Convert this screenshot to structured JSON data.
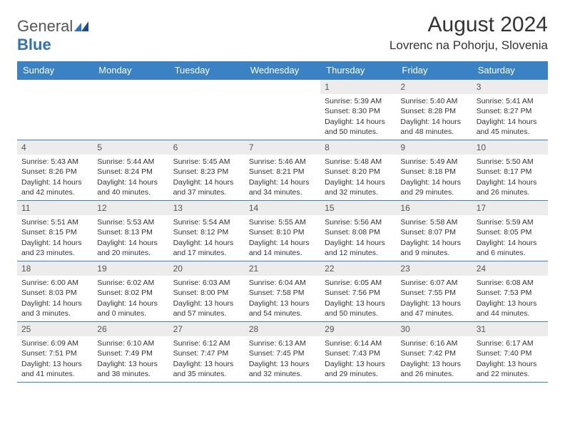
{
  "logo": {
    "general": "General",
    "blue": "Blue"
  },
  "title": "August 2024",
  "location": "Lovrenc na Pohorju, Slovenia",
  "colors": {
    "header_bg": "#3a82c4",
    "header_text": "#ffffff",
    "daynum_bg": "#ececec",
    "body_text": "#333333",
    "logo_gray": "#555555",
    "logo_blue": "#2f72b9",
    "page_bg": "#ffffff"
  },
  "day_names": [
    "Sunday",
    "Monday",
    "Tuesday",
    "Wednesday",
    "Thursday",
    "Friday",
    "Saturday"
  ],
  "weeks": [
    [
      {
        "num": "",
        "lines": [
          "",
          "",
          "",
          ""
        ],
        "empty": true
      },
      {
        "num": "",
        "lines": [
          "",
          "",
          "",
          ""
        ],
        "empty": true
      },
      {
        "num": "",
        "lines": [
          "",
          "",
          "",
          ""
        ],
        "empty": true
      },
      {
        "num": "",
        "lines": [
          "",
          "",
          "",
          ""
        ],
        "empty": true
      },
      {
        "num": "1",
        "lines": [
          "Sunrise: 5:39 AM",
          "Sunset: 8:30 PM",
          "Daylight: 14 hours",
          "and 50 minutes."
        ]
      },
      {
        "num": "2",
        "lines": [
          "Sunrise: 5:40 AM",
          "Sunset: 8:28 PM",
          "Daylight: 14 hours",
          "and 48 minutes."
        ]
      },
      {
        "num": "3",
        "lines": [
          "Sunrise: 5:41 AM",
          "Sunset: 8:27 PM",
          "Daylight: 14 hours",
          "and 45 minutes."
        ]
      }
    ],
    [
      {
        "num": "4",
        "lines": [
          "Sunrise: 5:43 AM",
          "Sunset: 8:26 PM",
          "Daylight: 14 hours",
          "and 42 minutes."
        ]
      },
      {
        "num": "5",
        "lines": [
          "Sunrise: 5:44 AM",
          "Sunset: 8:24 PM",
          "Daylight: 14 hours",
          "and 40 minutes."
        ]
      },
      {
        "num": "6",
        "lines": [
          "Sunrise: 5:45 AM",
          "Sunset: 8:23 PM",
          "Daylight: 14 hours",
          "and 37 minutes."
        ]
      },
      {
        "num": "7",
        "lines": [
          "Sunrise: 5:46 AM",
          "Sunset: 8:21 PM",
          "Daylight: 14 hours",
          "and 34 minutes."
        ]
      },
      {
        "num": "8",
        "lines": [
          "Sunrise: 5:48 AM",
          "Sunset: 8:20 PM",
          "Daylight: 14 hours",
          "and 32 minutes."
        ]
      },
      {
        "num": "9",
        "lines": [
          "Sunrise: 5:49 AM",
          "Sunset: 8:18 PM",
          "Daylight: 14 hours",
          "and 29 minutes."
        ]
      },
      {
        "num": "10",
        "lines": [
          "Sunrise: 5:50 AM",
          "Sunset: 8:17 PM",
          "Daylight: 14 hours",
          "and 26 minutes."
        ]
      }
    ],
    [
      {
        "num": "11",
        "lines": [
          "Sunrise: 5:51 AM",
          "Sunset: 8:15 PM",
          "Daylight: 14 hours",
          "and 23 minutes."
        ]
      },
      {
        "num": "12",
        "lines": [
          "Sunrise: 5:53 AM",
          "Sunset: 8:13 PM",
          "Daylight: 14 hours",
          "and 20 minutes."
        ]
      },
      {
        "num": "13",
        "lines": [
          "Sunrise: 5:54 AM",
          "Sunset: 8:12 PM",
          "Daylight: 14 hours",
          "and 17 minutes."
        ]
      },
      {
        "num": "14",
        "lines": [
          "Sunrise: 5:55 AM",
          "Sunset: 8:10 PM",
          "Daylight: 14 hours",
          "and 14 minutes."
        ]
      },
      {
        "num": "15",
        "lines": [
          "Sunrise: 5:56 AM",
          "Sunset: 8:08 PM",
          "Daylight: 14 hours",
          "and 12 minutes."
        ]
      },
      {
        "num": "16",
        "lines": [
          "Sunrise: 5:58 AM",
          "Sunset: 8:07 PM",
          "Daylight: 14 hours",
          "and 9 minutes."
        ]
      },
      {
        "num": "17",
        "lines": [
          "Sunrise: 5:59 AM",
          "Sunset: 8:05 PM",
          "Daylight: 14 hours",
          "and 6 minutes."
        ]
      }
    ],
    [
      {
        "num": "18",
        "lines": [
          "Sunrise: 6:00 AM",
          "Sunset: 8:03 PM",
          "Daylight: 14 hours",
          "and 3 minutes."
        ]
      },
      {
        "num": "19",
        "lines": [
          "Sunrise: 6:02 AM",
          "Sunset: 8:02 PM",
          "Daylight: 14 hours",
          "and 0 minutes."
        ]
      },
      {
        "num": "20",
        "lines": [
          "Sunrise: 6:03 AM",
          "Sunset: 8:00 PM",
          "Daylight: 13 hours",
          "and 57 minutes."
        ]
      },
      {
        "num": "21",
        "lines": [
          "Sunrise: 6:04 AM",
          "Sunset: 7:58 PM",
          "Daylight: 13 hours",
          "and 54 minutes."
        ]
      },
      {
        "num": "22",
        "lines": [
          "Sunrise: 6:05 AM",
          "Sunset: 7:56 PM",
          "Daylight: 13 hours",
          "and 50 minutes."
        ]
      },
      {
        "num": "23",
        "lines": [
          "Sunrise: 6:07 AM",
          "Sunset: 7:55 PM",
          "Daylight: 13 hours",
          "and 47 minutes."
        ]
      },
      {
        "num": "24",
        "lines": [
          "Sunrise: 6:08 AM",
          "Sunset: 7:53 PM",
          "Daylight: 13 hours",
          "and 44 minutes."
        ]
      }
    ],
    [
      {
        "num": "25",
        "lines": [
          "Sunrise: 6:09 AM",
          "Sunset: 7:51 PM",
          "Daylight: 13 hours",
          "and 41 minutes."
        ]
      },
      {
        "num": "26",
        "lines": [
          "Sunrise: 6:10 AM",
          "Sunset: 7:49 PM",
          "Daylight: 13 hours",
          "and 38 minutes."
        ]
      },
      {
        "num": "27",
        "lines": [
          "Sunrise: 6:12 AM",
          "Sunset: 7:47 PM",
          "Daylight: 13 hours",
          "and 35 minutes."
        ]
      },
      {
        "num": "28",
        "lines": [
          "Sunrise: 6:13 AM",
          "Sunset: 7:45 PM",
          "Daylight: 13 hours",
          "and 32 minutes."
        ]
      },
      {
        "num": "29",
        "lines": [
          "Sunrise: 6:14 AM",
          "Sunset: 7:43 PM",
          "Daylight: 13 hours",
          "and 29 minutes."
        ]
      },
      {
        "num": "30",
        "lines": [
          "Sunrise: 6:16 AM",
          "Sunset: 7:42 PM",
          "Daylight: 13 hours",
          "and 26 minutes."
        ]
      },
      {
        "num": "31",
        "lines": [
          "Sunrise: 6:17 AM",
          "Sunset: 7:40 PM",
          "Daylight: 13 hours",
          "and 22 minutes."
        ]
      }
    ]
  ]
}
